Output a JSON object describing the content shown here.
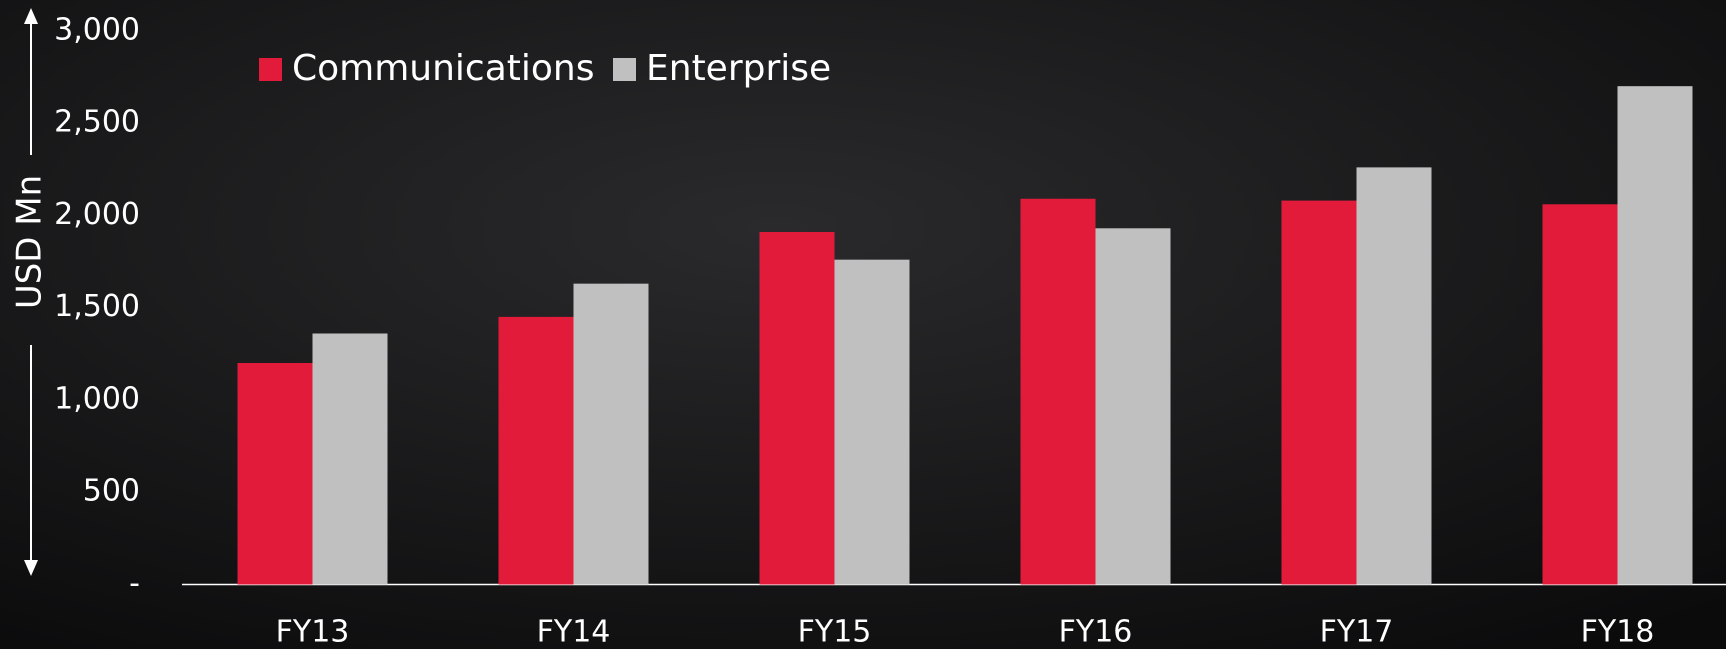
{
  "chart_data": {
    "type": "bar",
    "y_label": "USD Mn",
    "categories": [
      "FY13",
      "FY14",
      "FY15",
      "FY16",
      "FY17",
      "FY18"
    ],
    "series": [
      {
        "name": "Communications",
        "color": "#e31b3b",
        "values": [
          1200,
          1450,
          1910,
          2090,
          2080,
          2060
        ]
      },
      {
        "name": "Enterprise",
        "color": "#c0c0c0",
        "values": [
          1360,
          1630,
          1760,
          1930,
          2260,
          2700
        ]
      }
    ],
    "ylim": [
      0,
      3000
    ],
    "yticks": [
      {
        "value": 0,
        "label": "-"
      },
      500,
      {
        "value": 1000,
        "label": "1,000"
      },
      {
        "value": 1500,
        "label": "1,500"
      },
      {
        "value": 2000,
        "label": "2,000"
      },
      {
        "value": 2500,
        "label": "2,500"
      },
      {
        "value": 3000,
        "label": "3,000"
      }
    ],
    "grid": false
  }
}
